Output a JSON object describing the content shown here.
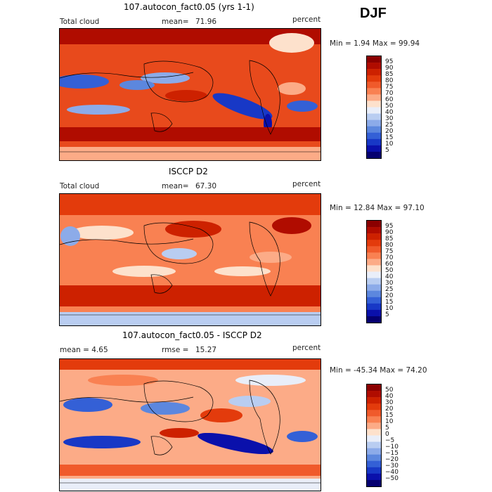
{
  "season": "DJF",
  "panels": [
    {
      "id": "model",
      "title": "107.autocon_fact0.05 (yrs 1-1)",
      "left_label": "Total cloud",
      "stat_label": "mean=",
      "stat_value": "71.96",
      "units": "percent",
      "minmax_text": "Min =   1.94 Max =  99.94",
      "colorbar_labels": [
        "95",
        "90",
        "85",
        "80",
        "75",
        "70",
        "60",
        "50",
        "40",
        "30",
        "25",
        "20",
        "15",
        "10",
        "5"
      ],
      "colors": [
        "#8b0000",
        "#b00c00",
        "#cd2100",
        "#e33b0c",
        "#f05a2b",
        "#f98152",
        "#fcab87",
        "#fde1cc",
        "#e9eef9",
        "#b9cdf1",
        "#8cabe9",
        "#5c87de",
        "#3460d6",
        "#1838c6",
        "#0a10ab",
        "#050070"
      ]
    },
    {
      "id": "obs",
      "title": "ISCCP D2",
      "left_label": "Total cloud",
      "stat_label": "mean=",
      "stat_value": "67.30",
      "units": "percent",
      "minmax_text": "Min =  12.84 Max =  97.10",
      "colorbar_labels": [
        "95",
        "90",
        "85",
        "80",
        "75",
        "70",
        "60",
        "50",
        "40",
        "30",
        "25",
        "20",
        "15",
        "10",
        "5"
      ],
      "colors": [
        "#8b0000",
        "#b00c00",
        "#cd2100",
        "#e33b0c",
        "#f05a2b",
        "#f98152",
        "#fcab87",
        "#fde1cc",
        "#e9eef9",
        "#b9cdf1",
        "#8cabe9",
        "#5c87de",
        "#3460d6",
        "#1838c6",
        "#0a10ab",
        "#050070"
      ]
    },
    {
      "id": "diff",
      "title": "107.autocon_fact0.05 - ISCCP D2",
      "left_label": "mean =    4.65",
      "stat_label": "rmse =",
      "stat_value": "15.27",
      "units": "percent",
      "minmax_text": "Min = -45.34 Max =  74.20",
      "colorbar_labels": [
        "50",
        "40",
        "30",
        "20",
        "15",
        "10",
        "5",
        "0",
        "−5",
        "−10",
        "−15",
        "−20",
        "−30",
        "−40",
        "−50"
      ],
      "colors": [
        "#8b0000",
        "#b00c00",
        "#cd2100",
        "#e33b0c",
        "#f05a2b",
        "#f98152",
        "#fcab87",
        "#fde1cc",
        "#e9eef9",
        "#b9cdf1",
        "#8cabe9",
        "#5c87de",
        "#3460d6",
        "#1838c6",
        "#0a10ab",
        "#050070"
      ]
    }
  ],
  "chart_data": {
    "type": "heatmap",
    "title": "DJF",
    "xlabel": "",
    "ylabel": "",
    "maps": [
      "107.autocon_fact0.05 (yrs 1-1)",
      "ISCCP D2",
      "107.autocon_fact0.05 - ISCCP D2"
    ],
    "series": [
      {
        "name": "107.autocon_fact0.05 (yrs 1-1)",
        "variable": "Total cloud",
        "units": "percent",
        "mean": 71.96,
        "min": 1.94,
        "max": 99.94,
        "levels": [
          5,
          10,
          15,
          20,
          25,
          30,
          40,
          50,
          60,
          70,
          75,
          80,
          85,
          90,
          95
        ]
      },
      {
        "name": "ISCCP D2",
        "variable": "Total cloud",
        "units": "percent",
        "mean": 67.3,
        "min": 12.84,
        "max": 97.1,
        "levels": [
          5,
          10,
          15,
          20,
          25,
          30,
          40,
          50,
          60,
          70,
          75,
          80,
          85,
          90,
          95
        ]
      },
      {
        "name": "107.autocon_fact0.05 - ISCCP D2",
        "units": "percent",
        "mean": 4.65,
        "rmse": 15.27,
        "min": -45.34,
        "max": 74.2,
        "levels": [
          -50,
          -40,
          -30,
          -20,
          -15,
          -10,
          -5,
          0,
          5,
          10,
          15,
          20,
          30,
          40,
          50
        ]
      }
    ]
  }
}
